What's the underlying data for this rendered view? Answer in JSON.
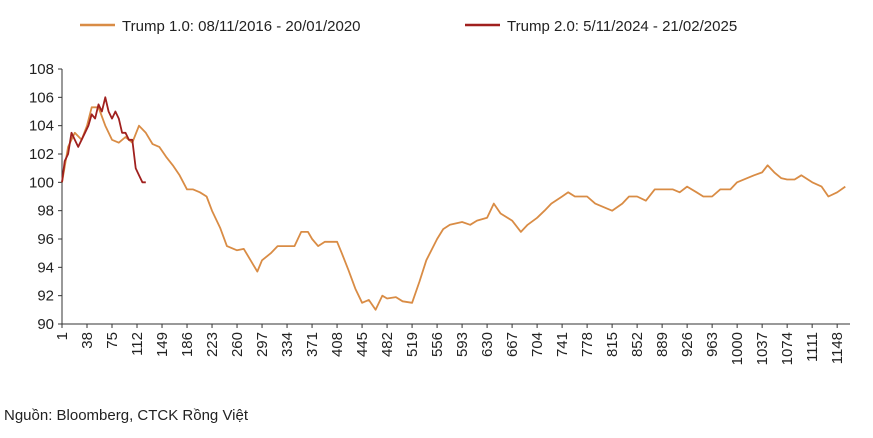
{
  "chart_data": {
    "type": "line",
    "legend_position": "top",
    "source": "Nguồn: Bloomberg, CTCK Rồng Việt",
    "series": [
      {
        "name": "Trump 1.0: 08/11/2016 - 20/01/2020",
        "color": "#d98c45",
        "x": [
          1,
          10,
          20,
          30,
          38,
          45,
          55,
          65,
          75,
          85,
          95,
          105,
          115,
          125,
          135,
          145,
          155,
          165,
          175,
          186,
          195,
          205,
          215,
          223,
          235,
          245,
          260,
          270,
          280,
          290,
          297,
          310,
          320,
          334,
          345,
          355,
          365,
          371,
          380,
          390,
          400,
          408,
          415,
          425,
          435,
          445,
          455,
          465,
          475,
          482,
          495,
          505,
          519,
          530,
          540,
          556,
          565,
          575,
          593,
          605,
          615,
          630,
          640,
          650,
          667,
          680,
          690,
          704,
          715,
          725,
          741,
          750,
          760,
          778,
          790,
          800,
          815,
          830,
          840,
          852,
          865,
          878,
          889,
          905,
          915,
          926,
          940,
          950,
          963,
          975,
          990,
          1000,
          1015,
          1025,
          1037,
          1045,
          1055,
          1065,
          1074,
          1085,
          1095,
          1111,
          1125,
          1135,
          1148,
          1160
        ],
        "values": [
          100,
          102.5,
          103.5,
          103,
          104,
          105.3,
          105.3,
          104,
          103,
          102.8,
          103.2,
          102.8,
          104,
          103.5,
          102.7,
          102.5,
          101.8,
          101.2,
          100.5,
          99.5,
          99.5,
          99.3,
          99,
          98,
          96.8,
          95.5,
          95.2,
          95.3,
          94.5,
          93.7,
          94.5,
          95,
          95.5,
          95.5,
          95.5,
          96.5,
          96.5,
          96,
          95.5,
          95.8,
          95.8,
          95.8,
          95,
          93.8,
          92.5,
          91.5,
          91.7,
          91,
          92,
          91.8,
          91.9,
          91.6,
          91.5,
          93,
          94.5,
          96,
          96.7,
          97,
          97.2,
          97,
          97.3,
          97.5,
          98.5,
          97.8,
          97.3,
          96.5,
          97,
          97.5,
          98,
          98.5,
          99,
          99.3,
          99,
          99,
          98.5,
          98.3,
          98,
          98.5,
          99,
          99,
          98.7,
          99.5,
          99.5,
          99.5,
          99.3,
          99.7,
          99.3,
          99,
          99,
          99.5,
          99.5,
          100,
          100.3,
          100.5,
          100.7,
          101.2,
          100.7,
          100.3,
          100.2,
          100.2,
          100.5,
          100,
          99.7,
          99,
          99.3,
          99.7
        ]
      },
      {
        "name": "Trump 2.0: 5/11/2024 - 21/02/2025",
        "color": "#a0201e",
        "x": [
          1,
          5,
          10,
          15,
          20,
          25,
          30,
          35,
          40,
          45,
          50,
          55,
          60,
          65,
          70,
          75,
          80,
          85,
          90,
          95,
          100,
          105,
          110,
          115,
          120,
          125
        ],
        "values": [
          100,
          101.5,
          102,
          103.5,
          103,
          102.5,
          103,
          103.5,
          104,
          104.8,
          104.5,
          105.5,
          105,
          106,
          105,
          104.5,
          105,
          104.5,
          103.5,
          103.5,
          103,
          103,
          101,
          100.5,
          100,
          100
        ]
      }
    ],
    "xlim": [
      1,
      1167
    ],
    "xticks": [
      1,
      38,
      75,
      112,
      149,
      186,
      223,
      260,
      297,
      334,
      371,
      408,
      445,
      482,
      519,
      556,
      593,
      630,
      667,
      704,
      741,
      778,
      815,
      852,
      889,
      926,
      963,
      1000,
      1037,
      1074,
      1111,
      1148
    ],
    "ylim": [
      90,
      108
    ],
    "yticks": [
      90,
      92,
      94,
      96,
      98,
      100,
      102,
      104,
      106,
      108
    ]
  }
}
